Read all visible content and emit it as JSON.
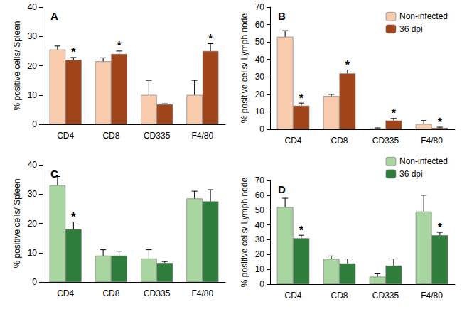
{
  "chart_data": [
    {
      "type": "bar",
      "title": "A",
      "y_label": "% positive cells/ Spleen",
      "categories": [
        "CD4",
        "CD8",
        "CD335",
        "F4/80"
      ],
      "series": [
        {
          "name": "Non-infected",
          "color": "#f8cbad",
          "values": [
            25.5,
            21.5,
            10,
            10
          ],
          "errors": [
            1.2,
            1.2,
            5,
            5
          ],
          "significance": [
            null,
            null,
            null,
            null
          ]
        },
        {
          "name": "36 dpi",
          "color": "#a0441a",
          "values": [
            22,
            24,
            6.8,
            25
          ],
          "errors": [
            0.8,
            1,
            0.2,
            2.5
          ],
          "significance": [
            "*",
            "*",
            null,
            "*"
          ]
        }
      ],
      "ylim": [
        0,
        40
      ],
      "yticks": [
        0,
        10,
        20,
        30,
        40
      ],
      "grid": false
    },
    {
      "type": "bar",
      "title": "B",
      "y_label": "% positive cells/ Lymph node",
      "categories": [
        "CD4",
        "CD8",
        "CD335",
        "F4/80"
      ],
      "series": [
        {
          "name": "Non-infected",
          "color": "#f8cbad",
          "values": [
            53,
            19,
            0.5,
            3
          ],
          "errors": [
            3.5,
            1,
            0.3,
            2
          ],
          "significance": [
            null,
            null,
            null,
            null
          ]
        },
        {
          "name": "36 dpi",
          "color": "#a0441a",
          "values": [
            13.5,
            32,
            5,
            0.8
          ],
          "errors": [
            1.5,
            2,
            1.2,
            0.4
          ],
          "significance": [
            "*",
            "*",
            "*",
            "*"
          ]
        }
      ],
      "ylim": [
        0,
        70
      ],
      "yticks": [
        0,
        10,
        20,
        30,
        40,
        50,
        60,
        70
      ],
      "grid": false,
      "legend": "top-right"
    },
    {
      "type": "bar",
      "title": "C",
      "y_label": "% positive cells/ Spleen",
      "categories": [
        "CD4",
        "CD8",
        "CD335",
        "F4/80"
      ],
      "series": [
        {
          "name": "Non-infected",
          "color": "#a9d6a0",
          "values": [
            33,
            9,
            8,
            28.5
          ],
          "errors": [
            3,
            2,
            3,
            2.5
          ],
          "significance": [
            null,
            null,
            null,
            null
          ]
        },
        {
          "name": "36 dpi",
          "color": "#2e7d3a",
          "values": [
            18,
            9,
            6.5,
            27.5
          ],
          "errors": [
            2.5,
            1.5,
            0.5,
            4
          ],
          "significance": [
            "*",
            null,
            null,
            null
          ]
        }
      ],
      "ylim": [
        0,
        40
      ],
      "yticks": [
        0,
        10,
        20,
        30,
        40
      ],
      "grid": false
    },
    {
      "type": "bar",
      "title": "D",
      "y_label": "% positive cells/ Lymph node",
      "categories": [
        "CD4",
        "CD8",
        "CD335",
        "F4/80"
      ],
      "series": [
        {
          "name": "Non-infected",
          "color": "#a9d6a0",
          "values": [
            52,
            17,
            5,
            49
          ],
          "errors": [
            6,
            2,
            2,
            11
          ],
          "significance": [
            null,
            null,
            null,
            null
          ]
        },
        {
          "name": "36 dpi",
          "color": "#2e7d3a",
          "values": [
            31,
            14,
            12.5,
            33
          ],
          "errors": [
            2,
            3,
            4.5,
            2
          ],
          "significance": [
            "*",
            null,
            null,
            "*"
          ]
        }
      ],
      "ylim": [
        0,
        70
      ],
      "yticks": [
        0,
        10,
        20,
        30,
        40,
        50,
        60,
        70
      ],
      "grid": false,
      "legend": "top-right"
    }
  ]
}
